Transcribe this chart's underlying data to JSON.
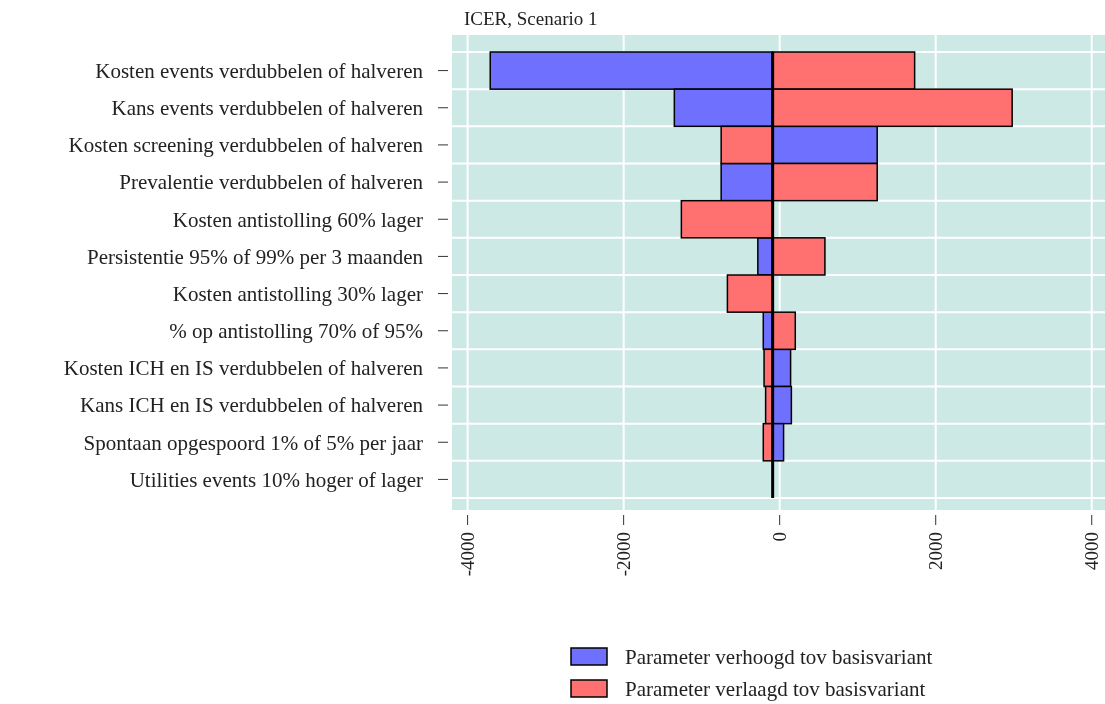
{
  "chart_data": {
    "type": "bar",
    "orientation": "horizontal",
    "title": "ICER, Scenario 1",
    "categories": [
      "Kosten events verdubbelen of halveren",
      "Kans events verdubbelen of halveren",
      "Kosten screening verdubbelen of halveren",
      "Prevalentie verdubbelen of halveren",
      "Kosten antistolling 60% lager",
      "Persistentie 95% of 99% per 3 maanden",
      "Kosten antistolling 30% lager",
      "% op antistolling 70% of 95%",
      "Kosten ICH en IS verdubbelen of halveren",
      "Kans ICH en IS verdubbelen of halveren",
      "Spontaan opgespoord 1% of 5% per jaar",
      "Utilities events 10% hoger of lager"
    ],
    "series": [
      {
        "name": "Parameter verhoogd tov basisvariant",
        "color": "#7070ff",
        "values": [
          -3620,
          -1260,
          1340,
          -660,
          null,
          -190,
          null,
          -120,
          230,
          240,
          140,
          null
        ],
        "base": [
          -90,
          -90,
          -90,
          -90,
          null,
          -90,
          null,
          -90,
          -90,
          -90,
          -90,
          null
        ]
      },
      {
        "name": "Parameter verlaagd tov basisvariant",
        "color": "#ff7070",
        "values": [
          1820,
          3070,
          -660,
          1340,
          -1170,
          670,
          -580,
          290,
          -110,
          -90,
          -120,
          null
        ],
        "base": [
          -90,
          -90,
          -90,
          -90,
          -90,
          -90,
          -90,
          -90,
          -90,
          -90,
          -90,
          null
        ]
      }
    ],
    "ref_lines": [
      {
        "axis": "x",
        "value": -90,
        "color": "#000000"
      }
    ],
    "xlim": [
      -4200,
      4170
    ],
    "xticks": [
      -4000,
      -2000,
      0,
      2000,
      4000
    ],
    "grid": true,
    "legend": "bottom"
  }
}
